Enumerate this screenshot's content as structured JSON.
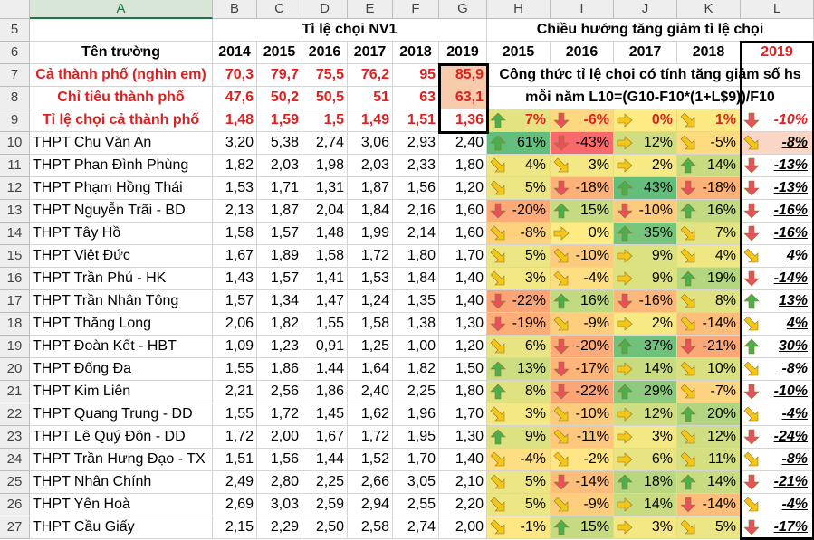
{
  "columns": [
    "A",
    "B",
    "C",
    "D",
    "E",
    "F",
    "G",
    "H",
    "I",
    "J",
    "K",
    "L"
  ],
  "row_numbers": [
    "5",
    "6",
    "7",
    "8",
    "9",
    "10",
    "11",
    "12",
    "13",
    "14",
    "15",
    "16",
    "17",
    "18",
    "19",
    "20",
    "21",
    "22",
    "23",
    "24",
    "25",
    "26",
    "27"
  ],
  "header": {
    "group_left": "Tỉ lệ chọi NV1",
    "group_right": "Chiều hướng tăng giảm tỉ lệ chọi",
    "school_label": "Tên trường",
    "years_left": [
      "2014",
      "2015",
      "2016",
      "2017",
      "2018",
      "2019"
    ],
    "years_right": [
      "2015",
      "2016",
      "2017",
      "2018",
      "2019"
    ]
  },
  "summary": [
    {
      "label": "Cả thành phố (nghìn em)",
      "values": [
        "70,3",
        "79,7",
        "75,5",
        "76,2",
        "95",
        "85,9"
      ]
    },
    {
      "label": "Chỉ tiêu thành phố",
      "values": [
        "47,6",
        "50,2",
        "50,5",
        "51",
        "63",
        "63,1"
      ]
    },
    {
      "label": "Tỉ lệ chọi cả thành phố",
      "values": [
        "1,48",
        "1,59",
        "1,5",
        "1,49",
        "1,51",
        "1,36"
      ]
    }
  ],
  "formula_note_line1": "Công thức tỉ lệ chọi có tính tăng giảm số hs",
  "formula_note_line2": "mỗi năm L10=(G10-F10*(1+L$9))/F10",
  "row9_changes": [
    {
      "text": "7%",
      "dir": "up"
    },
    {
      "text": "-6%",
      "dir": "down"
    },
    {
      "text": "0%",
      "dir": "right"
    },
    {
      "text": "1%",
      "dir": "diag"
    },
    {
      "text": "-10%",
      "dir": "down"
    }
  ],
  "icon_names": {
    "up": "arrow-up-icon",
    "down": "arrow-down-icon",
    "right": "arrow-right-icon",
    "diag": "arrow-diagonal-icon"
  },
  "colors": {
    "high": "#63be7b",
    "low": "#f8696b",
    "mid": "#ffeb84",
    "up_arrow": "#4cae4c",
    "down_arrow": "#e8505b",
    "side_arrow": "#f5c518"
  },
  "schools": [
    {
      "name": "THPT Chu Văn An",
      "v": [
        "3,20",
        "5,38",
        "2,74",
        "3,06",
        "2,93",
        "2,40"
      ],
      "h": [
        [
          "61%",
          "up"
        ],
        [
          "-43%",
          "down"
        ],
        [
          "12%",
          "right"
        ],
        [
          "-5%",
          "diag"
        ]
      ],
      "l": "-8%"
    },
    {
      "name": "THPT Phan Đình Phùng",
      "v": [
        "1,82",
        "2,03",
        "1,98",
        "2,03",
        "2,33",
        "1,80"
      ],
      "h": [
        [
          "4%",
          "diag"
        ],
        [
          "3%",
          "diag"
        ],
        [
          "2%",
          "right"
        ],
        [
          "14%",
          "up"
        ]
      ],
      "l": "-13%"
    },
    {
      "name": "THPT Phạm Hồng Thái",
      "v": [
        "1,53",
        "1,71",
        "1,31",
        "1,87",
        "1,56",
        "1,20"
      ],
      "h": [
        [
          "5%",
          "diag"
        ],
        [
          "-18%",
          "down"
        ],
        [
          "43%",
          "up"
        ],
        [
          "-18%",
          "down"
        ]
      ],
      "l": "-13%"
    },
    {
      "name": "THPT Nguyễn Trãi - BD",
      "v": [
        "2,13",
        "1,87",
        "2,04",
        "1,84",
        "2,16",
        "1,60"
      ],
      "h": [
        [
          "-20%",
          "down"
        ],
        [
          "15%",
          "up"
        ],
        [
          "-10%",
          "down"
        ],
        [
          "16%",
          "up"
        ]
      ],
      "l": "-16%"
    },
    {
      "name": "THPT Tây Hồ",
      "v": [
        "1,58",
        "1,57",
        "1,48",
        "1,99",
        "2,14",
        "1,60"
      ],
      "h": [
        [
          "-8%",
          "diag"
        ],
        [
          "0%",
          "right"
        ],
        [
          "35%",
          "up"
        ],
        [
          "7%",
          "diag"
        ]
      ],
      "l": "-16%"
    },
    {
      "name": "THPT Việt Đức",
      "v": [
        "1,67",
        "1,89",
        "1,58",
        "1,72",
        "1,80",
        "1,70"
      ],
      "h": [
        [
          "5%",
          "diag"
        ],
        [
          "-10%",
          "diag"
        ],
        [
          "9%",
          "right"
        ],
        [
          "4%",
          "diag"
        ]
      ],
      "l": "4%"
    },
    {
      "name": "THPT Trần Phú - HK",
      "v": [
        "1,43",
        "1,57",
        "1,41",
        "1,53",
        "1,84",
        "1,40"
      ],
      "h": [
        [
          "3%",
          "diag"
        ],
        [
          "-4%",
          "diag"
        ],
        [
          "9%",
          "right"
        ],
        [
          "19%",
          "up"
        ]
      ],
      "l": "-14%"
    },
    {
      "name": "THPT Trần Nhân Tông",
      "v": [
        "1,57",
        "1,34",
        "1,47",
        "1,24",
        "1,35",
        "1,40"
      ],
      "h": [
        [
          "-22%",
          "down"
        ],
        [
          "16%",
          "up"
        ],
        [
          "-16%",
          "down"
        ],
        [
          "8%",
          "diag"
        ]
      ],
      "l": "13%"
    },
    {
      "name": "THPT Thăng Long",
      "v": [
        "2,06",
        "1,82",
        "1,55",
        "1,58",
        "1,38",
        "1,30"
      ],
      "h": [
        [
          "-19%",
          "down"
        ],
        [
          "-9%",
          "diag"
        ],
        [
          "2%",
          "right"
        ],
        [
          "-14%",
          "diag"
        ]
      ],
      "l": "4%"
    },
    {
      "name": "THPT Đoàn Kết - HBT",
      "v": [
        "1,09",
        "1,23",
        "0,91",
        "1,25",
        "1,00",
        "1,20"
      ],
      "h": [
        [
          "6%",
          "diag"
        ],
        [
          "-20%",
          "down"
        ],
        [
          "37%",
          "up"
        ],
        [
          "-21%",
          "down"
        ]
      ],
      "l": "30%"
    },
    {
      "name": "THPT Đống Đa",
      "v": [
        "1,55",
        "1,86",
        "1,44",
        "1,64",
        "1,82",
        "1,50"
      ],
      "h": [
        [
          "13%",
          "up"
        ],
        [
          "-17%",
          "down"
        ],
        [
          "14%",
          "right"
        ],
        [
          "10%",
          "diag"
        ]
      ],
      "l": "-8%"
    },
    {
      "name": "THPT Kim Liên",
      "v": [
        "2,21",
        "2,56",
        "1,86",
        "2,40",
        "2,25",
        "1,80"
      ],
      "h": [
        [
          "8%",
          "up"
        ],
        [
          "-22%",
          "down"
        ],
        [
          "29%",
          "up"
        ],
        [
          "-7%",
          "diag"
        ]
      ],
      "l": "-10%"
    },
    {
      "name": "THPT Quang Trung - DD",
      "v": [
        "1,55",
        "1,72",
        "1,45",
        "1,62",
        "1,96",
        "1,70"
      ],
      "h": [
        [
          "3%",
          "diag"
        ],
        [
          "-10%",
          "diag"
        ],
        [
          "12%",
          "right"
        ],
        [
          "20%",
          "up"
        ]
      ],
      "l": "-4%"
    },
    {
      "name": "THPT Lê Quý Đôn - DD",
      "v": [
        "1,72",
        "2,00",
        "1,67",
        "1,72",
        "1,95",
        "1,30"
      ],
      "h": [
        [
          "9%",
          "up"
        ],
        [
          "-11%",
          "diag"
        ],
        [
          "3%",
          "right"
        ],
        [
          "12%",
          "diag"
        ]
      ],
      "l": "-24%"
    },
    {
      "name": "THPT Trần Hưng Đạo - TX",
      "v": [
        "1,51",
        "1,56",
        "1,44",
        "1,52",
        "1,70",
        "1,40"
      ],
      "h": [
        [
          "-4%",
          "diag"
        ],
        [
          "-2%",
          "diag"
        ],
        [
          "6%",
          "right"
        ],
        [
          "11%",
          "diag"
        ]
      ],
      "l": "-8%"
    },
    {
      "name": "THPT Nhân Chính",
      "v": [
        "2,49",
        "2,80",
        "2,25",
        "2,66",
        "3,05",
        "2,10"
      ],
      "h": [
        [
          "5%",
          "diag"
        ],
        [
          "-14%",
          "down"
        ],
        [
          "18%",
          "up"
        ],
        [
          "14%",
          "up"
        ]
      ],
      "l": "-21%"
    },
    {
      "name": "THPT Yên Hoà",
      "v": [
        "2,69",
        "3,03",
        "2,59",
        "2,94",
        "2,55",
        "2,20"
      ],
      "h": [
        [
          "5%",
          "diag"
        ],
        [
          "-9%",
          "diag"
        ],
        [
          "14%",
          "right"
        ],
        [
          "-14%",
          "down"
        ]
      ],
      "l": "-4%"
    },
    {
      "name": "THPT Cầu Giấy",
      "v": [
        "2,15",
        "2,29",
        "2,50",
        "2,58",
        "2,74",
        "2,00"
      ],
      "h": [
        [
          "-1%",
          "diag"
        ],
        [
          "15%",
          "up"
        ],
        [
          "3%",
          "right"
        ],
        [
          "5%",
          "diag"
        ]
      ],
      "l": "-17%"
    }
  ]
}
